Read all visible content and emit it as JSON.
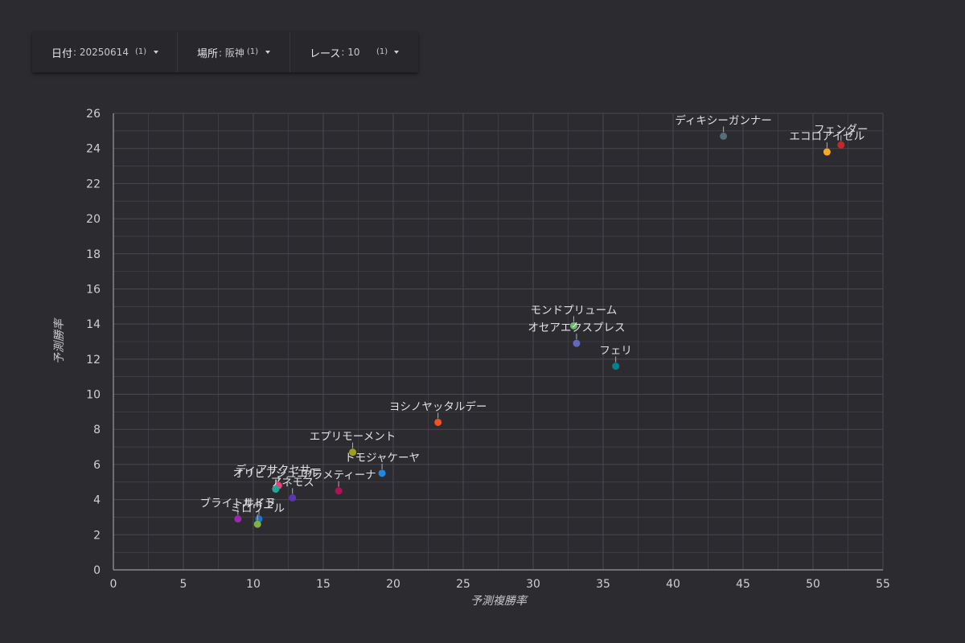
{
  "filters": {
    "date": {
      "label": "日付",
      "value": ": 20250614",
      "count": "(1)"
    },
    "place": {
      "label": "場所",
      "value": ": 阪神",
      "count": "(1)"
    },
    "race": {
      "label": "レース",
      "value": ": 10",
      "count": "(1)"
    }
  },
  "colors": {
    "background": "#2c2b30",
    "grid": "#4a4950",
    "axis": "#9a9aa0"
  },
  "chart_data": {
    "type": "scatter",
    "xlabel": "予測複勝率",
    "ylabel": "予測勝率",
    "xlim": [
      0,
      55
    ],
    "ylim": [
      0,
      26
    ],
    "x_ticks": [
      0,
      5,
      10,
      15,
      20,
      25,
      30,
      35,
      40,
      45,
      50,
      55
    ],
    "y_ticks": [
      0,
      2,
      4,
      6,
      8,
      10,
      12,
      14,
      16,
      18,
      20,
      22,
      24,
      26
    ],
    "grid": true,
    "points": [
      {
        "name": "ディキシーガンナー",
        "x": 43.6,
        "y": 24.7,
        "color": "#546e7a"
      },
      {
        "name": "フェンダー",
        "x": 52.0,
        "y": 24.2,
        "color": "#c62828"
      },
      {
        "name": "エコロアイゼル",
        "x": 51.0,
        "y": 23.8,
        "color": "#f9a825"
      },
      {
        "name": "モンドプリューム",
        "x": 32.9,
        "y": 13.9,
        "color": "#66bb6a"
      },
      {
        "name": "オセアエクスプレス",
        "x": 33.1,
        "y": 12.9,
        "color": "#5c6bc0"
      },
      {
        "name": "フェリ",
        "x": 35.9,
        "y": 11.6,
        "color": "#00838f"
      },
      {
        "name": "ヨシノヤッタルデー",
        "x": 23.2,
        "y": 8.4,
        "color": "#f4511e"
      },
      {
        "name": "エプリモーメント",
        "x": 17.1,
        "y": 6.7,
        "color": "#9e9d24"
      },
      {
        "name": "トモジャケーヤ",
        "x": 19.2,
        "y": 5.5,
        "color": "#1e88e5"
      },
      {
        "name": "ディアサクセサー",
        "x": 11.8,
        "y": 4.8,
        "color": "#ec407a"
      },
      {
        "name": "オリビアジュエル",
        "x": 11.6,
        "y": 4.6,
        "color": "#26a69a"
      },
      {
        "name": "アラメティーナ",
        "x": 16.1,
        "y": 4.5,
        "color": "#ad1457"
      },
      {
        "name": "アネモス",
        "x": 12.8,
        "y": 4.1,
        "color": "#5e35b1"
      },
      {
        "name": "ブライトサイド",
        "x": 8.9,
        "y": 2.9,
        "color": "#9c27b0"
      },
      {
        "name": "ルドラ",
        "x": 10.4,
        "y": 2.9,
        "color": "#1976d2"
      },
      {
        "name": "ミロワール",
        "x": 10.3,
        "y": 2.6,
        "color": "#7cb342"
      }
    ]
  }
}
